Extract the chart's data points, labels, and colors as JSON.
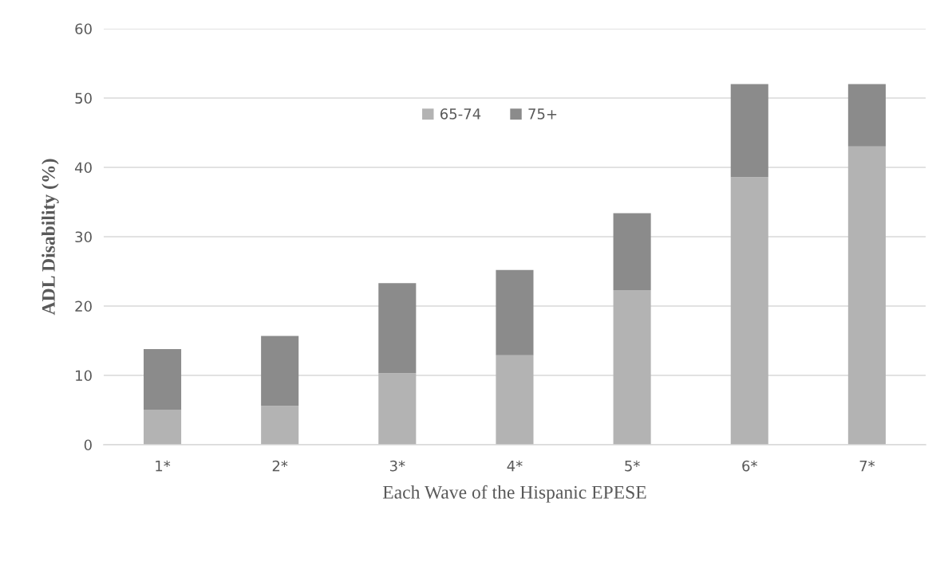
{
  "chart_data": {
    "type": "bar",
    "stacked": true,
    "categories": [
      "1*",
      "2*",
      "3*",
      "4*",
      "5*",
      "6*",
      "7*"
    ],
    "series": [
      {
        "name": "65-74",
        "color": "#b3b3b3",
        "values": [
          5.0,
          5.6,
          10.3,
          12.9,
          22.3,
          38.6,
          43.0
        ]
      },
      {
        "name": "75+",
        "color": "#8b8b8b",
        "values": [
          8.8,
          10.1,
          13.0,
          12.3,
          11.1,
          13.4,
          9.0
        ]
      }
    ],
    "xlabel": "Each Wave of the Hispanic EPESE",
    "ylabel": "ADL Disability (%)",
    "ylim": [
      0,
      60
    ],
    "yticks": [
      0,
      10,
      20,
      30,
      40,
      50,
      60
    ],
    "grid": "y",
    "legend": "top"
  }
}
